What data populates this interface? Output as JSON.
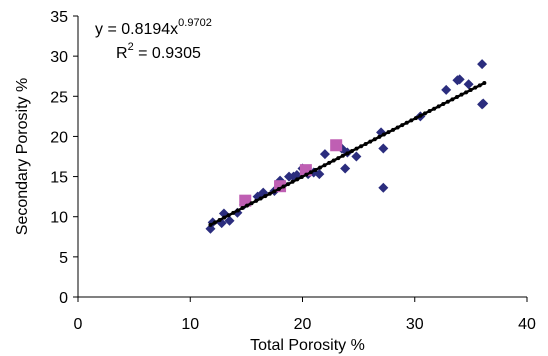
{
  "chart_data": {
    "type": "scatter",
    "xlabel": "Total Porosity %",
    "ylabel": "Secondary Porosity %",
    "xlim": [
      0,
      40
    ],
    "ylim": [
      0,
      35
    ],
    "xticks": [
      0,
      10,
      20,
      30,
      40
    ],
    "yticks": [
      0,
      5,
      10,
      15,
      20,
      25,
      30,
      35
    ],
    "grid": false,
    "legend": "none",
    "annotation": {
      "equation_prefix": "y = 0.8194x",
      "equation_exponent": "0.9702",
      "r2_prefix": "R",
      "r2_exponent": "2",
      "r2_value": " = 0.9305"
    },
    "series": [
      {
        "marker": "diamond",
        "color": "#2b2d7e",
        "points": [
          [
            11.8,
            8.5
          ],
          [
            12.0,
            9.3
          ],
          [
            12.8,
            9.2
          ],
          [
            13.0,
            10.4
          ],
          [
            13.5,
            9.5
          ],
          [
            14.2,
            10.5
          ],
          [
            14.8,
            11.5
          ],
          [
            16.0,
            12.5
          ],
          [
            16.5,
            13.0
          ],
          [
            17.5,
            13.2
          ],
          [
            18.0,
            14.5
          ],
          [
            18.3,
            14.0
          ],
          [
            18.8,
            15.0
          ],
          [
            19.2,
            15.0
          ],
          [
            19.5,
            15.2
          ],
          [
            20.0,
            16.0
          ],
          [
            20.2,
            15.8
          ],
          [
            20.5,
            15.3
          ],
          [
            21.0,
            15.5
          ],
          [
            21.5,
            15.3
          ],
          [
            22.0,
            17.8
          ],
          [
            23.0,
            19.0
          ],
          [
            23.5,
            18.5
          ],
          [
            23.8,
            16.0
          ],
          [
            24.0,
            18.0
          ],
          [
            24.8,
            17.5
          ],
          [
            27.0,
            20.5
          ],
          [
            27.2,
            18.5
          ],
          [
            27.2,
            13.6
          ],
          [
            30.5,
            22.5
          ],
          [
            32.8,
            25.8
          ],
          [
            33.8,
            27.0
          ],
          [
            34.0,
            27.1
          ],
          [
            34.8,
            26.5
          ],
          [
            36.0,
            29.0
          ],
          [
            36.0,
            24.0
          ],
          [
            36.1,
            24.1
          ]
        ]
      },
      {
        "marker": "square",
        "color": "#bf5fb3",
        "points": [
          [
            14.9,
            12.0
          ],
          [
            18.0,
            13.8
          ],
          [
            20.3,
            15.8
          ],
          [
            23.0,
            18.9
          ]
        ]
      }
    ],
    "trendline": {
      "type": "power",
      "a": 0.8194,
      "b": 0.9702,
      "x_from": 11.8,
      "x_to": 36.2,
      "color": "#000000"
    }
  }
}
